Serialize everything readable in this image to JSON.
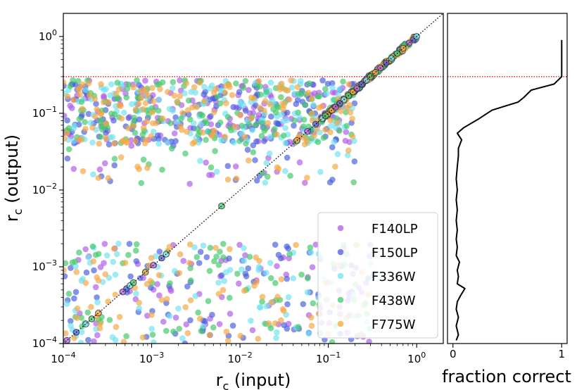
{
  "colors": {
    "F140LP": "#b15ce6",
    "F150LP": "#4a5fdc",
    "F336W": "#6fe3f0",
    "F438W": "#43c96a",
    "F775W": "#f5a742",
    "threshold_line": "#e00000",
    "identity_line": "#000000",
    "fraction_line": "#000000"
  },
  "chart_data": [
    {
      "type": "scatter",
      "xlabel": "r_c (input)",
      "ylabel": "r_c (output)",
      "xscale": "log",
      "yscale": "log",
      "xlim": [
        0.0001,
        2
      ],
      "ylim": [
        0.0001,
        2
      ],
      "x_ticks": [
        {
          "value": 0.0001,
          "base": "10",
          "exp": "−4"
        },
        {
          "value": 0.001,
          "base": "10",
          "exp": "−3"
        },
        {
          "value": 0.01,
          "base": "10",
          "exp": "−2"
        },
        {
          "value": 0.1,
          "base": "10",
          "exp": "−1"
        },
        {
          "value": 1,
          "base": "10",
          "exp": "0"
        }
      ],
      "y_ticks": [
        {
          "value": 0.0001,
          "base": "10",
          "exp": "−4"
        },
        {
          "value": 0.001,
          "base": "10",
          "exp": "−3"
        },
        {
          "value": 0.01,
          "base": "10",
          "exp": "−2"
        },
        {
          "value": 0.1,
          "base": "10",
          "exp": "−1"
        },
        {
          "value": 1,
          "base": "10",
          "exp": "0"
        }
      ],
      "threshold_y": 0.3,
      "identity_line": true,
      "legend_position": "lower-right",
      "series": [
        {
          "name": "F140LP",
          "color_key": "F140LP",
          "seed": 11
        },
        {
          "name": "F150LP",
          "color_key": "F150LP",
          "seed": 23
        },
        {
          "name": "F336W",
          "color_key": "F336W",
          "seed": 37
        },
        {
          "name": "F438W",
          "color_key": "F438W",
          "seed": 41
        },
        {
          "name": "F775W",
          "color_key": "F775W",
          "seed": 59
        }
      ],
      "sampling": {
        "cluster_points_per_series": 160,
        "cluster_y_range": [
          0.04,
          0.27
        ],
        "low_points_per_series": 80,
        "low_y_range": [
          0.0001,
          0.002
        ],
        "diagonal_points_per_series": 40,
        "x_range": [
          0.0001,
          1.0
        ]
      },
      "diagonal_points": [
        0.00011,
        0.00014,
        0.00018,
        0.00021,
        0.00025,
        0.00047,
        0.00052,
        0.00057,
        0.00062,
        0.00085,
        0.00105,
        0.0013,
        0.00146,
        0.0062,
        0.044,
        0.058,
        0.072,
        0.085,
        0.093,
        0.11,
        0.12,
        0.135,
        0.15,
        0.17,
        0.19,
        0.21,
        0.24,
        0.27,
        0.3,
        0.34,
        0.39,
        0.45,
        0.52,
        0.6,
        0.7,
        0.82,
        0.92,
        1.0
      ]
    },
    {
      "type": "line",
      "xlabel": "fraction correct",
      "ylabel": "",
      "xlim": [
        -0.05,
        1.05
      ],
      "ylim": [
        0.0001,
        2
      ],
      "yscale": "log",
      "x_ticks": [
        {
          "value": 0,
          "label": "0"
        },
        {
          "value": 1,
          "label": "1"
        }
      ],
      "threshold_y": 0.3,
      "points": [
        {
          "y": 0.00011,
          "x": 0.03
        },
        {
          "y": 0.00013,
          "x": 0.05
        },
        {
          "y": 0.00017,
          "x": 0.03
        },
        {
          "y": 0.00022,
          "x": 0.05
        },
        {
          "y": 0.00028,
          "x": 0.03
        },
        {
          "y": 0.00035,
          "x": 0.04
        },
        {
          "y": 0.00042,
          "x": 0.07
        },
        {
          "y": 0.00052,
          "x": 0.11
        },
        {
          "y": 0.0006,
          "x": 0.04
        },
        {
          "y": 0.00075,
          "x": 0.05
        },
        {
          "y": 0.0009,
          "x": 0.04
        },
        {
          "y": 0.00115,
          "x": 0.06
        },
        {
          "y": 0.0014,
          "x": 0.03
        },
        {
          "y": 0.0018,
          "x": 0.04
        },
        {
          "y": 0.0023,
          "x": 0.03
        },
        {
          "y": 0.003,
          "x": 0.04
        },
        {
          "y": 0.004,
          "x": 0.03
        },
        {
          "y": 0.0055,
          "x": 0.04
        },
        {
          "y": 0.0075,
          "x": 0.03
        },
        {
          "y": 0.01,
          "x": 0.04
        },
        {
          "y": 0.014,
          "x": 0.03
        },
        {
          "y": 0.02,
          "x": 0.04
        },
        {
          "y": 0.028,
          "x": 0.05
        },
        {
          "y": 0.035,
          "x": 0.05
        },
        {
          "y": 0.045,
          "x": 0.08
        },
        {
          "y": 0.055,
          "x": 0.04
        },
        {
          "y": 0.065,
          "x": 0.1
        },
        {
          "y": 0.085,
          "x": 0.24
        },
        {
          "y": 0.11,
          "x": 0.36
        },
        {
          "y": 0.14,
          "x": 0.6
        },
        {
          "y": 0.16,
          "x": 0.65
        },
        {
          "y": 0.2,
          "x": 0.72
        },
        {
          "y": 0.24,
          "x": 0.93
        },
        {
          "y": 0.3,
          "x": 1.0
        },
        {
          "y": 0.45,
          "x": 1.0
        },
        {
          "y": 0.9,
          "x": 1.0
        }
      ]
    }
  ],
  "legend": {
    "entries": [
      {
        "label": "F140LP",
        "color_key": "F140LP"
      },
      {
        "label": "F150LP",
        "color_key": "F150LP"
      },
      {
        "label": "F336W",
        "color_key": "F336W"
      },
      {
        "label": "F438W",
        "color_key": "F438W"
      },
      {
        "label": "F775W",
        "color_key": "F775W"
      }
    ]
  }
}
